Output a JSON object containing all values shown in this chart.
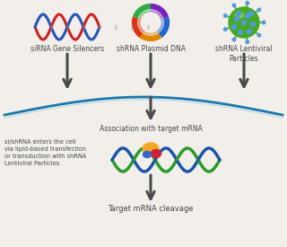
{
  "bg_color": "#f2efea",
  "labels": {
    "sirna": "siRNA Gene Silencers",
    "shrna_plasmid": "shRNA Plasmid DNA",
    "shrna_lentiviral": "shRNA Lentiviral\nParticles",
    "association": "Association with target mRNA",
    "cell_entry": "si/shRNA enters the cell\nvia lipid-based transfection\nor transduction with shRNA\nLentiviral Particles",
    "cleavage": "Target mRNA cleavage"
  },
  "arrow_color": "#4a4a4a",
  "curve_color_outer": "#1a78aa",
  "curve_color_inner": "#aad4e8",
  "text_color": "#444444",
  "dna_red": "#cc2222",
  "dna_blue": "#2255bb",
  "mrna_green": "#2a9a2a",
  "mrna_blue": "#1a55aa",
  "plasmid_colors": [
    "#7722bb",
    "#2266cc",
    "#dd8800",
    "#dd3311",
    "#33aa44"
  ],
  "risc_orange": "#f5a623",
  "risc_red": "#cc2233",
  "risc_blue": "#3366cc",
  "sphere_green": "#44aa22",
  "sphere_highlight": "#88cc44",
  "sphere_dots": "#5599dd"
}
